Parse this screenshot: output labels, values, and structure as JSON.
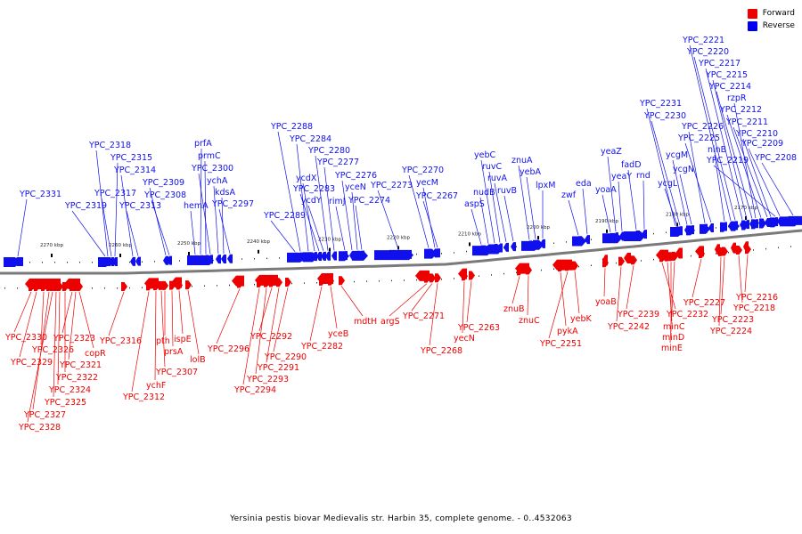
{
  "legend": [
    {
      "label": "Forward",
      "color": "#ee0000"
    },
    {
      "label": "Reverse",
      "color": "#0000ee"
    }
  ],
  "caption": "Yersinia pestis biovar Medievalis str. Harbin 35, complete genome. - 0..4532063",
  "colors": {
    "forward": "#ee0000",
    "reverse": "#1010ee",
    "axis": "#7a7a7a"
  },
  "scale_labels": [
    "2270 kbp",
    "2260 kbp",
    "2250 kbp",
    "2240 kbp",
    "2230 kbp",
    "2220 kbp",
    "2210 kbp",
    "2200 kbp",
    "2190 kbp",
    "2180 kbp",
    "2170 kbp"
  ],
  "reverse_genes": [
    "YPC_2331",
    "YPC_2319",
    "YPC_2317",
    "YPC_2318",
    "YPC_2315",
    "YPC_2314",
    "YPC_2313",
    "YPC_2309",
    "YPC_2308",
    "hemA",
    "prfA",
    "prmC",
    "YPC_2300",
    "ychA",
    "kdsA",
    "YPC_2297",
    "YPC_2289",
    "YPC_2288",
    "YPC_2284",
    "ycdX",
    "YPC_2283",
    "ycdY",
    "YPC_2280",
    "YPC_2277",
    "rimJ",
    "YPC_2276",
    "yceN",
    "YPC_2274",
    "YPC_2273",
    "YPC_2270",
    "yecM",
    "YPC_2267",
    "aspS",
    "nudB",
    "yebC",
    "ruvC",
    "ruvA",
    "ruvB",
    "znuA",
    "yebA",
    "lpxM",
    "zwf",
    "eda",
    "yoaA",
    "yeaZ",
    "yeaY",
    "fadD",
    "rnd",
    "YPC_2231",
    "YPC_2230",
    "ycgL",
    "ycgM",
    "ycgN",
    "YPC_2226",
    "YPC_2225",
    "ninB",
    "YPC_2221",
    "YPC_2220",
    "YPC_2217",
    "YPC_2215",
    "YPC_2214",
    "rzpR",
    "YPC_2212",
    "YPC_2211",
    "YPC_2210",
    "YPC_2219",
    "YPC_2209",
    "YPC_2208"
  ],
  "forward_genes": [
    "YPC_2330",
    "YPC_2329",
    "YPC_2326",
    "YPC_2327",
    "YPC_2328",
    "YPC_2325",
    "YPC_2324",
    "YPC_2322",
    "YPC_2323",
    "YPC_2321",
    "copR",
    "YPC_2316",
    "YPC_2312",
    "ychF",
    "YPC_2307",
    "pth",
    "prsA",
    "ispE",
    "lolB",
    "YPC_2296",
    "YPC_2294",
    "YPC_2293",
    "YPC_2292",
    "YPC_2291",
    "YPC_2290",
    "YPC_2282",
    "yceB",
    "mdtH",
    "argS",
    "YPC_2271",
    "YPC_2268",
    "yecN",
    "YPC_2263",
    "znuB",
    "znuC",
    "pykA",
    "YPC_2251",
    "yebK",
    "yoaB",
    "YPC_2242",
    "YPC_2239",
    "YPC_2232",
    "minC",
    "minD",
    "minE",
    "YPC_2227",
    "YPC_2224",
    "YPC_2223",
    "YPC_2218",
    "YPC_2216"
  ]
}
